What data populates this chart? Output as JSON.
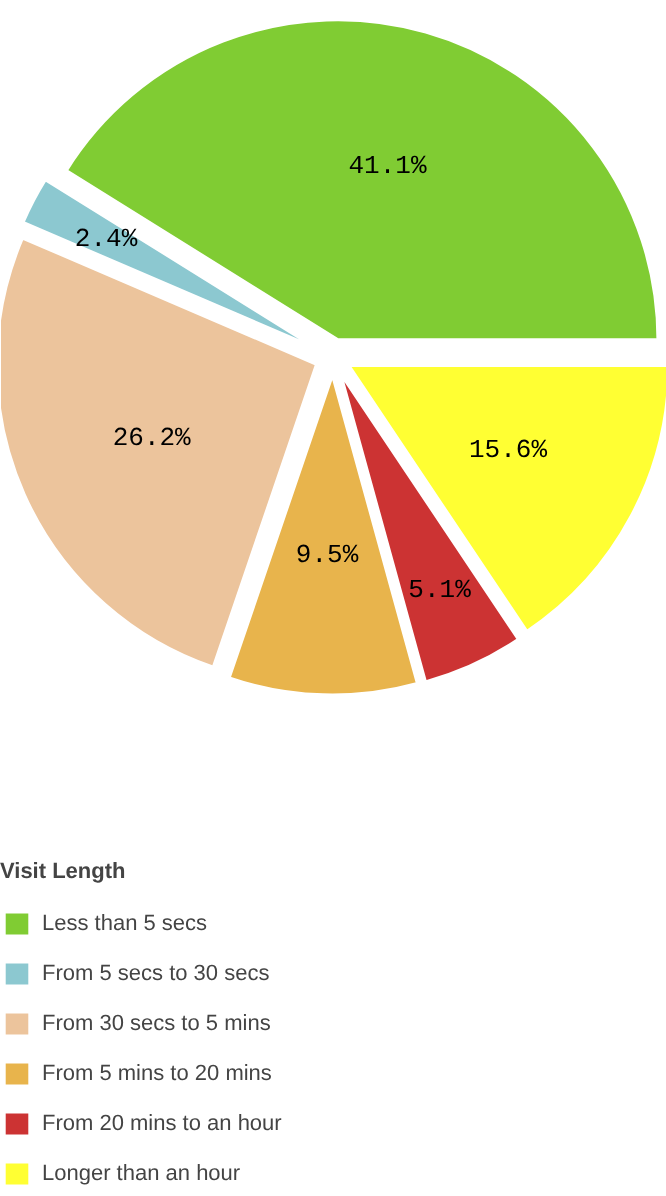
{
  "chart_data": {
    "type": "pie",
    "legend_title": "Visit Length",
    "legend": "bottom",
    "categories": [
      "Less than 5 secs",
      "From 5 secs to 30 secs",
      "From 30 secs to 5 mins",
      "From 5 mins to 20 mins",
      "From 20 mins to an hour",
      "Longer than an hour"
    ],
    "values": [
      41.1,
      2.4,
      26.2,
      9.5,
      5.1,
      15.6
    ],
    "value_labels": [
      "41.1%",
      "2.4%",
      "26.2%",
      "9.5%",
      "5.1%",
      "15.6%"
    ],
    "colors": [
      "#80cc33",
      "#8cc8d0",
      "#ecc49c",
      "#e8b44c",
      "#cc3333",
      "#ffff33"
    ]
  }
}
